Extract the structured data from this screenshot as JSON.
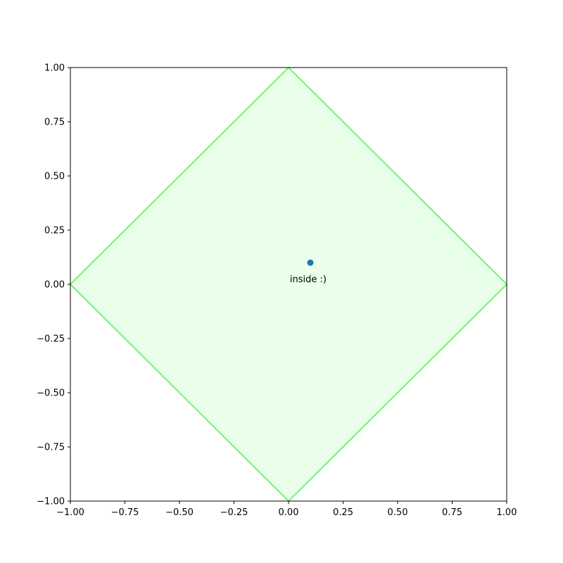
{
  "chart_data": {
    "type": "scatter",
    "title": "",
    "xlabel": "",
    "ylabel": "",
    "xlim": [
      -1.0,
      1.0
    ],
    "ylim": [
      -1.0,
      1.0
    ],
    "grid": false,
    "xticks": [
      "−1.00",
      "−0.75",
      "−0.50",
      "−0.25",
      "0.00",
      "0.25",
      "0.50",
      "0.75",
      "1.00"
    ],
    "yticks": [
      "−1.00",
      "−0.75",
      "−0.50",
      "−0.25",
      "0.00",
      "0.25",
      "0.50",
      "0.75",
      "1.00"
    ],
    "xtick_values": [
      -1.0,
      -0.75,
      -0.5,
      -0.25,
      0.0,
      0.25,
      0.5,
      0.75,
      1.0
    ],
    "ytick_values": [
      -1.0,
      -0.75,
      -0.5,
      -0.25,
      0.0,
      0.25,
      0.5,
      0.75,
      1.0
    ],
    "region": {
      "shape": "polygon",
      "vertices": [
        [
          0,
          1
        ],
        [
          1,
          0
        ],
        [
          0,
          -1
        ],
        [
          -1,
          0
        ]
      ],
      "edge_color": "#77f777",
      "fill_color": "#eaffea"
    },
    "points": [
      {
        "x": 0.1,
        "y": 0.1,
        "color": "#1f77b4"
      }
    ],
    "annotations": [
      {
        "text": "inside :)",
        "x": 0.09,
        "y": 0.01
      }
    ]
  }
}
